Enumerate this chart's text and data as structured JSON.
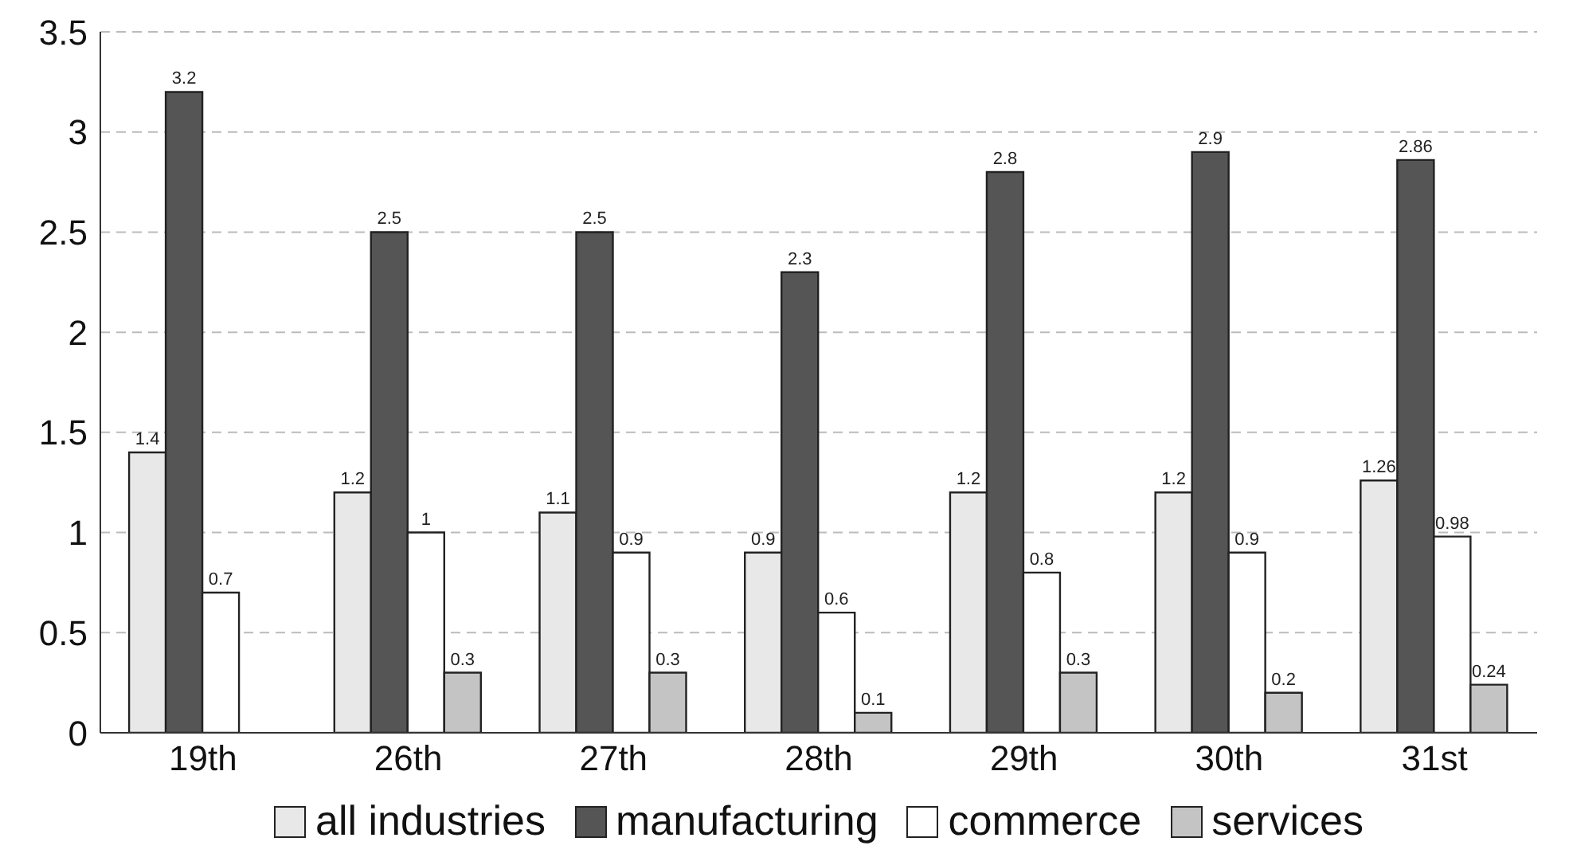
{
  "chart_data": {
    "type": "bar",
    "categories": [
      "19th",
      "26th",
      "27th",
      "28th",
      "29th",
      "30th",
      "31st"
    ],
    "series": [
      {
        "name": "all industries",
        "color": "#e8e8e8",
        "values": [
          1.4,
          1.2,
          1.1,
          0.9,
          1.2,
          1.2,
          1.26
        ]
      },
      {
        "name": "manufacturing",
        "color": "#555555",
        "values": [
          3.2,
          2.5,
          2.5,
          2.3,
          2.8,
          2.9,
          2.86
        ]
      },
      {
        "name": "commerce",
        "color": "#ffffff",
        "values": [
          0.7,
          1,
          0.9,
          0.6,
          0.8,
          0.9,
          0.98
        ]
      },
      {
        "name": "services",
        "color": "#c4c4c4",
        "values": [
          null,
          0.3,
          0.3,
          0.1,
          0.3,
          0.2,
          0.24
        ]
      }
    ],
    "ylim": [
      0,
      3.5
    ],
    "yticks": [
      0,
      0.5,
      1,
      1.5,
      2,
      2.5,
      3,
      3.5
    ],
    "grid": "y",
    "legend": "bottom",
    "data_labels": true
  }
}
